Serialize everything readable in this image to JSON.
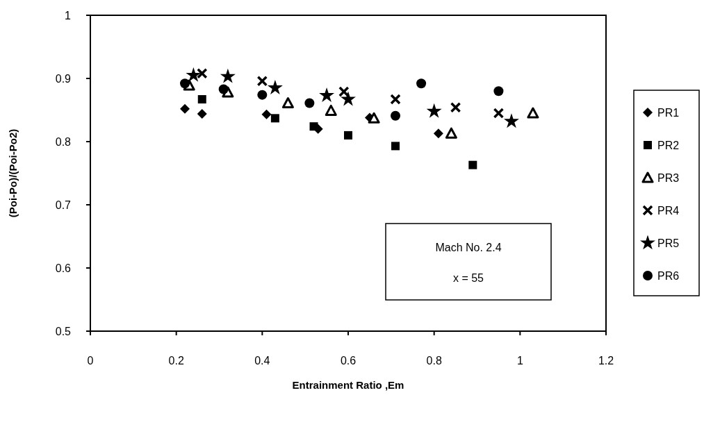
{
  "chart_data": {
    "type": "scatter",
    "xlabel": "Entrainment Ratio ,Em",
    "ylabel": "(Poi-Po)/(Poi-Po2)",
    "xlim": [
      0,
      1.2
    ],
    "xticks": [
      0,
      0.2,
      0.4,
      0.6,
      0.8,
      1,
      1.2
    ],
    "ylim": [
      0.5,
      1
    ],
    "yticks": [
      0.5,
      0.6,
      0.7,
      0.8,
      0.9,
      1
    ],
    "grid": false,
    "legend": "right",
    "annotations": [
      "Mach No. 2.4",
      "x = 55"
    ],
    "series": [
      {
        "name": "PR1",
        "color": "#000000",
        "marker": "diamond",
        "x": [
          0.22,
          0.26,
          0.41,
          0.53,
          0.65,
          0.81
        ],
        "values": [
          0.852,
          0.844,
          0.843,
          0.82,
          0.838,
          0.813
        ]
      },
      {
        "name": "PR2",
        "color": "#000000",
        "marker": "square",
        "x": [
          0.26,
          0.43,
          0.52,
          0.6,
          0.71,
          0.89
        ],
        "values": [
          0.867,
          0.837,
          0.824,
          0.81,
          0.793,
          0.763
        ]
      },
      {
        "name": "PR3",
        "color": "#000000",
        "marker": "triangle",
        "x": [
          0.23,
          0.32,
          0.46,
          0.56,
          0.66,
          0.84,
          1.03
        ],
        "values": [
          0.889,
          0.878,
          0.861,
          0.849,
          0.837,
          0.813,
          0.845
        ]
      },
      {
        "name": "PR4",
        "color": "#000000",
        "marker": "cross",
        "x": [
          0.26,
          0.4,
          0.59,
          0.71,
          0.85,
          0.95
        ],
        "values": [
          0.908,
          0.896,
          0.879,
          0.867,
          0.854,
          0.845
        ]
      },
      {
        "name": "PR5",
        "color": "#000000",
        "marker": "star",
        "x": [
          0.24,
          0.32,
          0.43,
          0.55,
          0.6,
          0.8,
          0.98
        ],
        "values": [
          0.905,
          0.903,
          0.885,
          0.873,
          0.867,
          0.848,
          0.832
        ]
      },
      {
        "name": "PR6",
        "color": "#000000",
        "marker": "circle",
        "x": [
          0.22,
          0.31,
          0.4,
          0.51,
          0.71,
          0.77,
          0.95
        ],
        "values": [
          0.892,
          0.883,
          0.874,
          0.861,
          0.841,
          0.892,
          0.88
        ]
      }
    ]
  }
}
